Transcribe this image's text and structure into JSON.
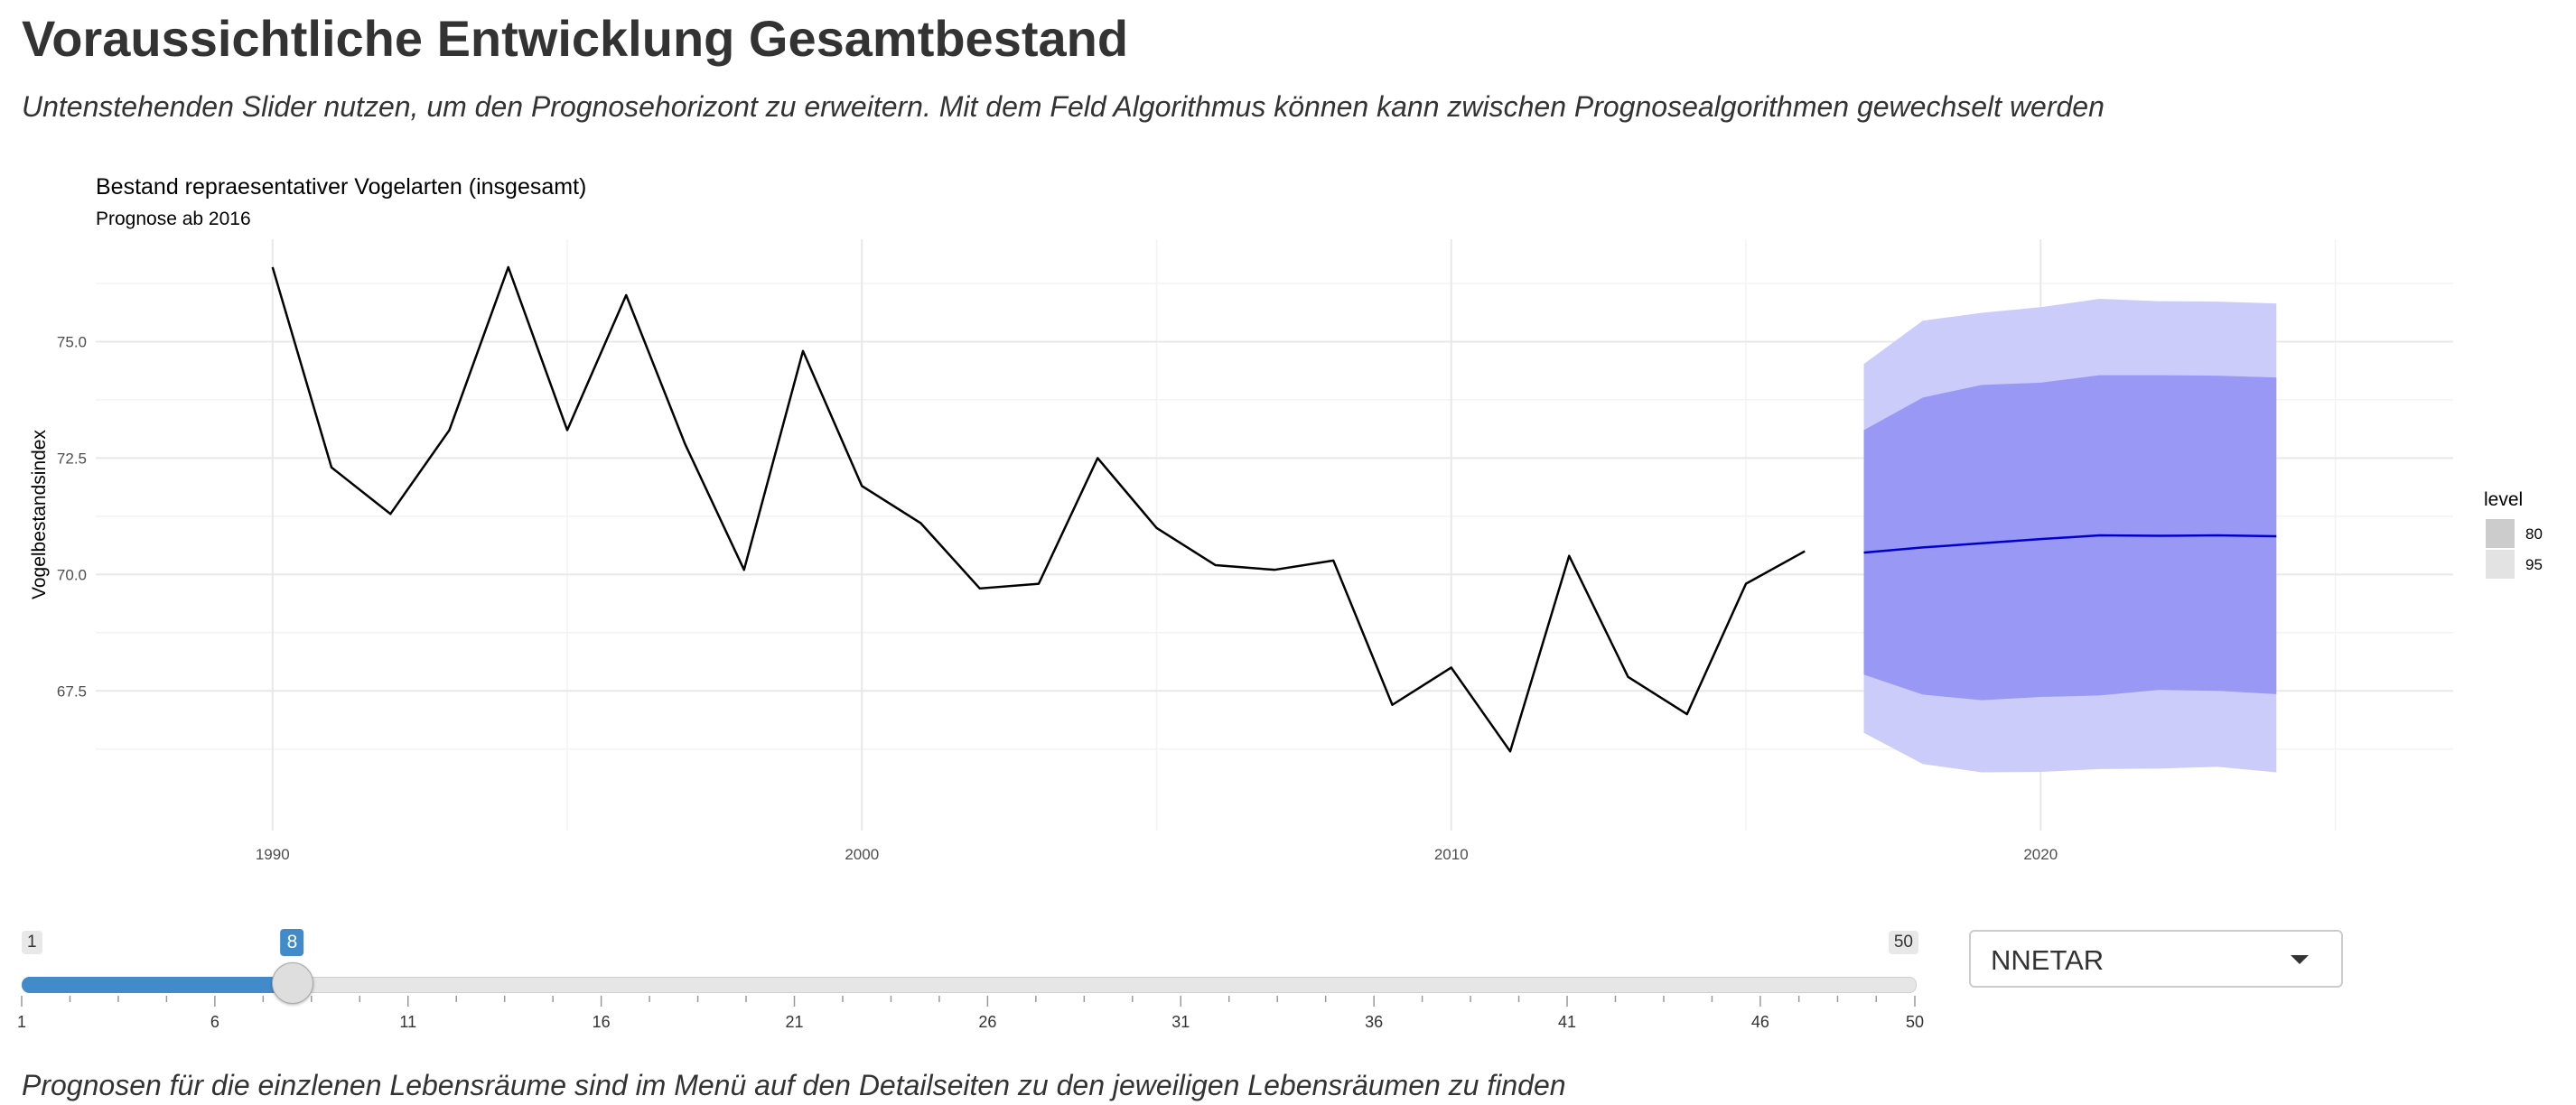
{
  "page": {
    "title": "Voraussichtliche Entwicklung Gesamtbestand",
    "subtitle": "Untenstehenden Slider nutzen, um den Prognosehorizont zu erweitern. Mit dem Feld Algorithmus können kann zwischen Prognosealgorithmen gewechselt werden",
    "footer": "Prognosen für die einzlenen Lebensräume sind im Menü auf den Detailseiten zu den jeweiligen Lebensräumen zu finden"
  },
  "slider": {
    "min": 1,
    "max": 50,
    "value": 8,
    "min_label": "1",
    "max_label": "50",
    "value_label": "8",
    "tick_labels": [
      "1",
      "6",
      "11",
      "16",
      "21",
      "26",
      "31",
      "36",
      "41",
      "46",
      "50"
    ],
    "color": "#428bca"
  },
  "algorithm": {
    "selected": "NNETAR",
    "caret_icon": "chevron-down-icon"
  },
  "chart_data": {
    "type": "line",
    "title": "Bestand repraesentativer Vogelarten (insgesamt)",
    "subtitle": "Prognose ab 2016",
    "xlabel": "",
    "ylabel": "Vogelbestandsindex",
    "xlim": [
      1987,
      2027
    ],
    "ylim": [
      64.5,
      77.2
    ],
    "x_ticks": [
      1990,
      2000,
      2010,
      2020
    ],
    "x_tick_labels": [
      "1990",
      "2000",
      "2010",
      "2020"
    ],
    "y_ticks": [
      67.5,
      70.0,
      72.5,
      75.0
    ],
    "y_tick_labels": [
      "67.5",
      "70.0",
      "72.5",
      "75.0"
    ],
    "grid": true,
    "history": {
      "color": "#000000",
      "x": [
        1990,
        1991,
        1992,
        1993,
        1994,
        1995,
        1996,
        1997,
        1998,
        1999,
        2000,
        2001,
        2002,
        2003,
        2004,
        2005,
        2006,
        2007,
        2008,
        2009,
        2010,
        2011,
        2012,
        2013,
        2014,
        2015,
        2016
      ],
      "y": [
        76.6,
        72.3,
        71.3,
        73.1,
        76.6,
        73.1,
        76.0,
        72.8,
        70.1,
        74.8,
        71.9,
        71.1,
        69.7,
        69.8,
        72.5,
        71.0,
        70.2,
        70.1,
        70.3,
        67.2,
        68.0,
        66.2,
        70.4,
        67.8,
        67.0,
        69.8,
        70.5
      ]
    },
    "forecast": {
      "color": "#0000cc",
      "x": [
        2017,
        2018,
        2019,
        2020,
        2021,
        2022,
        2023,
        2024
      ],
      "mean": [
        70.47,
        70.58,
        70.67,
        70.76,
        70.84,
        70.83,
        70.84,
        70.82
      ],
      "lo80": [
        67.85,
        67.42,
        67.3,
        67.37,
        67.4,
        67.52,
        67.5,
        67.43
      ],
      "hi80": [
        73.1,
        73.8,
        74.07,
        74.12,
        74.28,
        74.28,
        74.27,
        74.23
      ],
      "lo95": [
        66.6,
        65.93,
        65.75,
        65.76,
        65.82,
        65.83,
        65.87,
        65.75
      ],
      "hi95": [
        74.52,
        75.45,
        75.62,
        75.74,
        75.92,
        75.87,
        75.86,
        75.82
      ],
      "band80_color": "#9999f5",
      "band95_color": "#ccccfa"
    },
    "legend": {
      "title": "level",
      "placement": "right",
      "entries": [
        {
          "label": "80",
          "color": "#cccccc"
        },
        {
          "label": "95",
          "color": "#e3e3e3"
        }
      ]
    }
  }
}
